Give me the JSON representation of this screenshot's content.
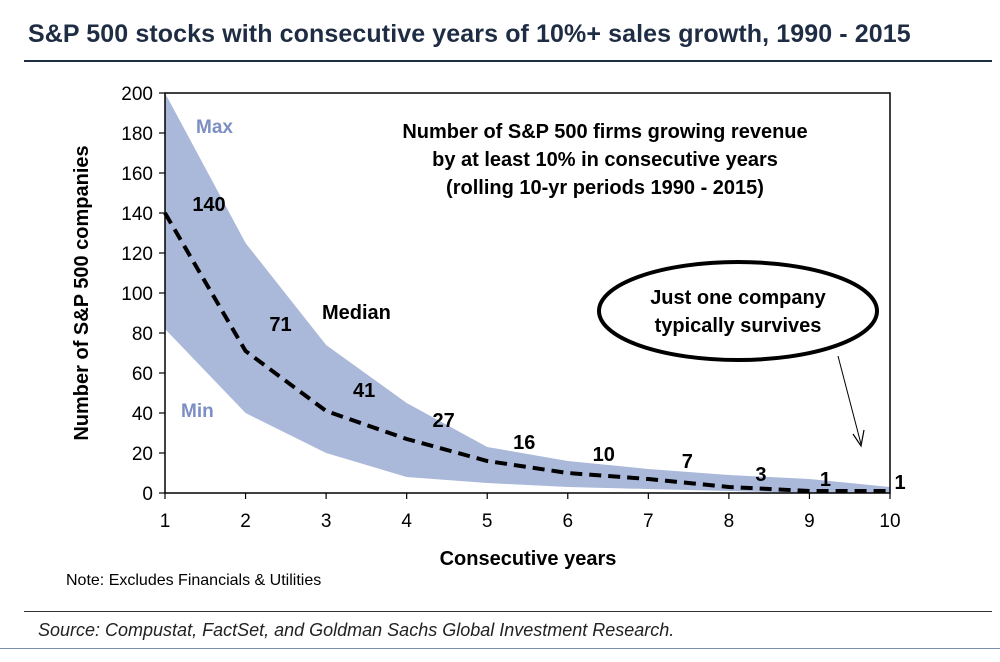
{
  "title": "S&P 500 stocks with consecutive years of 10%+ sales growth, 1990 - 2015",
  "note": "Note: Excludes Financials & Utilities",
  "source": "Source: Compustat, FactSet, and Goldman Sachs Global Investment Research.",
  "colors": {
    "band": "#aab8d9",
    "band_label": "#7c8fc2",
    "median_line": "#000000",
    "title": "#1f2d44"
  },
  "chart_data": {
    "type": "area",
    "title": "",
    "annotation_title": [
      "Number of S&P 500 firms growing revenue",
      "by at least 10% in consecutive years",
      "(rolling 10-yr periods 1990 - 2015)"
    ],
    "callout": [
      "Just one company",
      "typically survives"
    ],
    "xlabel": "Consecutive years",
    "ylabel": "Number of S&P 500 companies",
    "x": [
      1,
      2,
      3,
      4,
      5,
      6,
      7,
      8,
      9,
      10
    ],
    "xlim": [
      1,
      10
    ],
    "ylim": [
      0,
      200
    ],
    "x_ticks": [
      "1",
      "2",
      "3",
      "4",
      "5",
      "6",
      "7",
      "8",
      "9",
      "10"
    ],
    "y_ticks": [
      "0",
      "20",
      "40",
      "60",
      "80",
      "100",
      "120",
      "140",
      "160",
      "180",
      "200"
    ],
    "grid": false,
    "band_labels": {
      "max": "Max",
      "min": "Min"
    },
    "series": [
      {
        "name": "Max",
        "values": [
          200,
          125,
          74,
          45,
          23,
          16,
          12,
          9,
          7,
          3
        ]
      },
      {
        "name": "Median",
        "values": [
          140,
          71,
          41,
          27,
          16,
          10,
          7,
          3,
          1,
          1
        ],
        "style": "dashed"
      },
      {
        "name": "Min",
        "values": [
          82,
          40,
          20,
          8,
          5,
          3,
          2,
          1,
          0,
          0
        ]
      }
    ],
    "data_labels": [
      "140",
      "71",
      "41",
      "27",
      "16",
      "10",
      "7",
      "3",
      "1",
      "1"
    ]
  }
}
